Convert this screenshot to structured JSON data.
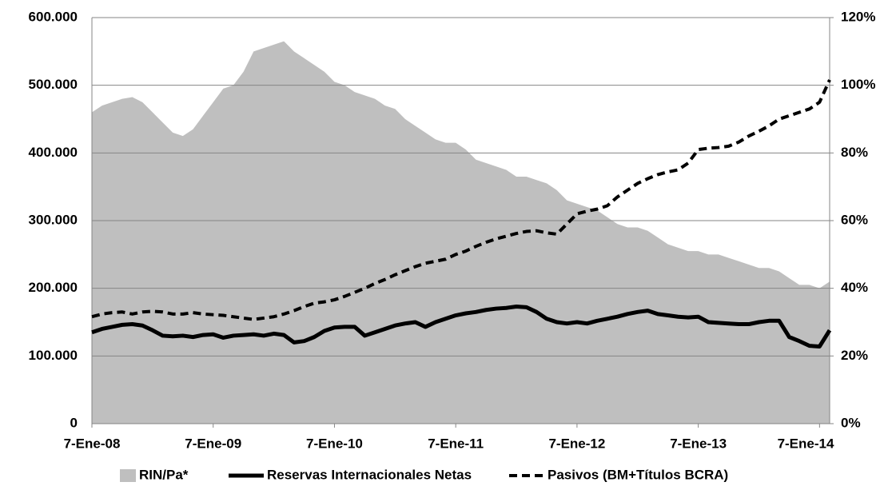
{
  "chart_data": {
    "type": "line",
    "categories": [
      "7-Ene-08",
      null,
      null,
      null,
      null,
      null,
      null,
      null,
      null,
      null,
      null,
      null,
      "7-Ene-09",
      null,
      null,
      null,
      null,
      null,
      null,
      null,
      null,
      null,
      null,
      null,
      "7-Ene-10",
      null,
      null,
      null,
      null,
      null,
      null,
      null,
      null,
      null,
      null,
      null,
      "7-Ene-11",
      null,
      null,
      null,
      null,
      null,
      null,
      null,
      null,
      null,
      null,
      null,
      "7-Ene-12",
      null,
      null,
      null,
      null,
      null,
      null,
      null,
      null,
      null,
      null,
      null,
      "7-Ene-13",
      null,
      null,
      null,
      null,
      null,
      null,
      null,
      null,
      null,
      null,
      null,
      "7-Ene-14",
      null
    ],
    "series": [
      {
        "name": "RIN/Pa*",
        "type": "area",
        "axis": "y2",
        "color": "#bfbfbf",
        "values": [
          92,
          94,
          95,
          96,
          96.5,
          95,
          92,
          89,
          86,
          85,
          87,
          91,
          95,
          99,
          100,
          104,
          110,
          111,
          112,
          113,
          110,
          108,
          106,
          104,
          101,
          100,
          98,
          97,
          96,
          94,
          93,
          90,
          88,
          86,
          84,
          83,
          83,
          81,
          78,
          77,
          76,
          75,
          73,
          73,
          72,
          71,
          69,
          66,
          65,
          64,
          63,
          61,
          59,
          58,
          58,
          57,
          55,
          53,
          52,
          51,
          51,
          50,
          50,
          49,
          48,
          47,
          46,
          46,
          45,
          43,
          41,
          41,
          40,
          42
        ]
      },
      {
        "name": "Reservas Internacionales Netas",
        "type": "line",
        "color": "#000000",
        "dashed": false,
        "values": [
          135000,
          140000,
          143000,
          146000,
          147000,
          145000,
          138000,
          130000,
          129000,
          130000,
          128000,
          131000,
          132000,
          127000,
          130000,
          131000,
          132000,
          130000,
          133000,
          131000,
          120000,
          122000,
          128000,
          137000,
          142000,
          143000,
          143000,
          130000,
          135000,
          140000,
          145000,
          148000,
          150000,
          143000,
          150000,
          155000,
          160000,
          163000,
          165000,
          168000,
          170000,
          171000,
          173000,
          172000,
          165000,
          155000,
          150000,
          148000,
          150000,
          148000,
          152000,
          155000,
          158000,
          162000,
          165000,
          167000,
          162000,
          160000,
          158000,
          157000,
          158000,
          150000,
          149000,
          148000,
          147000,
          147000,
          150000,
          152000,
          152000,
          128000,
          122000,
          115000,
          114000,
          138000
        ]
      },
      {
        "name": "Pasivos (BM+Títulos BCRA)",
        "type": "line",
        "color": "#000000",
        "dashed": true,
        "values": [
          158000,
          162000,
          164000,
          165000,
          162000,
          165000,
          166000,
          165000,
          162000,
          162000,
          164000,
          162000,
          161000,
          160000,
          158000,
          156000,
          154000,
          156000,
          158000,
          162000,
          167000,
          173000,
          178000,
          180000,
          183000,
          188000,
          194000,
          200000,
          207000,
          213000,
          220000,
          226000,
          232000,
          237000,
          240000,
          243000,
          250000,
          255000,
          262000,
          268000,
          273000,
          277000,
          281000,
          284000,
          285000,
          282000,
          280000,
          295000,
          310000,
          314000,
          317000,
          322000,
          335000,
          345000,
          355000,
          362000,
          368000,
          372000,
          375000,
          385000,
          405000,
          407000,
          408000,
          410000,
          416000,
          425000,
          432000,
          440000,
          450000,
          455000,
          460000,
          465000,
          475000,
          508000
        ]
      }
    ],
    "ylim": [
      0,
      600000
    ],
    "yticks": [
      0,
      {
        "value": 100000,
        "label": "100.000"
      },
      {
        "value": 200000,
        "label": "200.000"
      },
      {
        "value": 300000,
        "label": "300.000"
      },
      {
        "value": 400000,
        "label": "400.000"
      },
      {
        "value": 500000,
        "label": "500.000"
      },
      {
        "value": 600000,
        "label": "600.000"
      }
    ],
    "y2lim": [
      0,
      120
    ],
    "y2ticks": [
      {
        "value": 0,
        "label": "0%"
      },
      {
        "value": 20,
        "label": "20%"
      },
      {
        "value": 40,
        "label": "40%"
      },
      {
        "value": 60,
        "label": "60%"
      },
      {
        "value": 80,
        "label": "80%"
      },
      {
        "value": 100,
        "label": "100%"
      },
      {
        "value": 120,
        "label": "120%"
      }
    ],
    "grid": true,
    "legend": "bottom"
  }
}
